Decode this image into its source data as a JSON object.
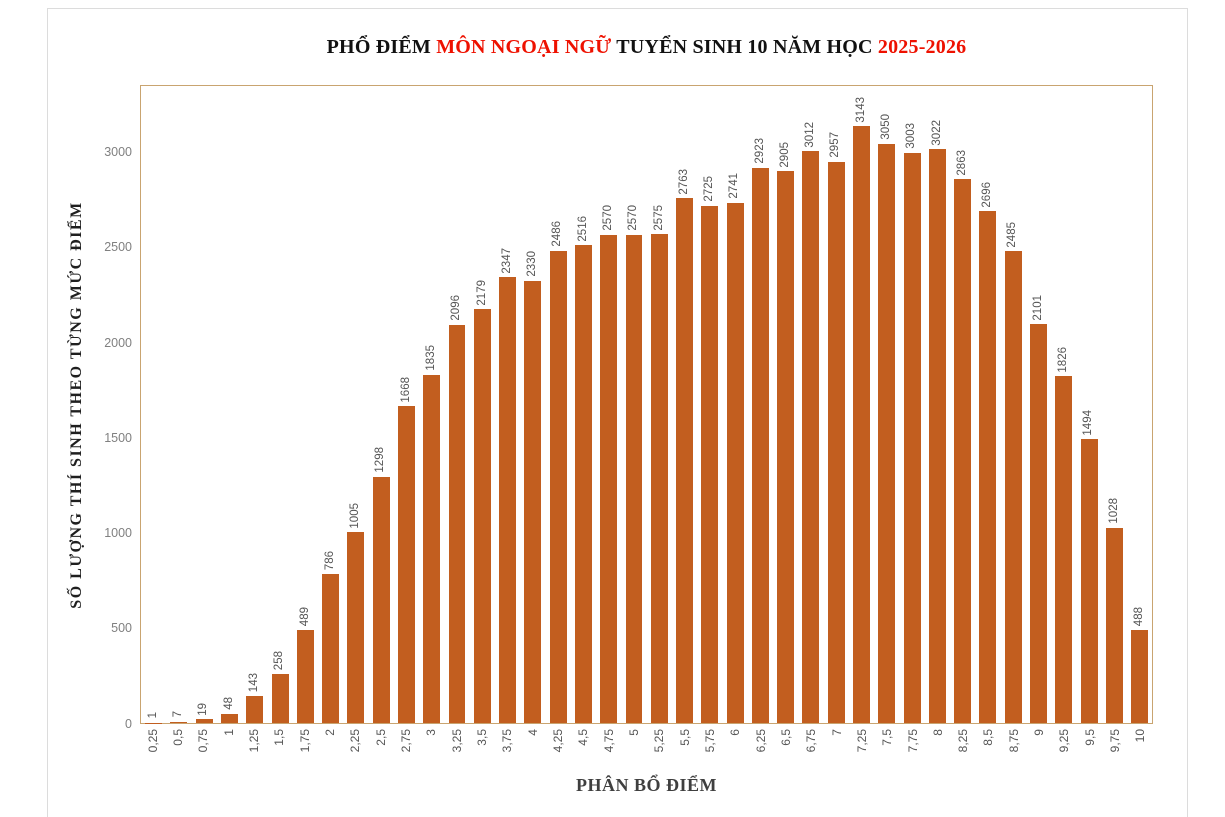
{
  "title": {
    "part1": "PHỔ ĐIỂM ",
    "part2_red": "MÔN NGOẠI NGỮ",
    "part3": " TUYỂN SINH 10 NĂM HỌC ",
    "part4_red": "2025-2026",
    "red_hex": "#ee1100"
  },
  "chart_data": {
    "type": "bar",
    "title": "PHỔ ĐIỂM MÔN NGOẠI NGỮ TUYỂN SINH 10 NĂM HỌC 2025-2026",
    "xlabel": "PHÂN BỔ ĐIỂM",
    "ylabel": "SỐ LƯỢNG THÍ SINH THEO TỪNG MỨC ĐIỂM",
    "categories": [
      "0,25",
      "0,5",
      "0,75",
      "1",
      "1,25",
      "1,5",
      "1,75",
      "2",
      "2,25",
      "2,5",
      "2,75",
      "3",
      "3,25",
      "3,5",
      "3,75",
      "4",
      "4,25",
      "4,5",
      "4,75",
      "5",
      "5,25",
      "5,5",
      "5,75",
      "6",
      "6,25",
      "6,5",
      "6,75",
      "7",
      "7,25",
      "7,5",
      "7,75",
      "8",
      "8,25",
      "8,5",
      "8,75",
      "9",
      "9,25",
      "9,5",
      "9,75",
      "10"
    ],
    "values": [
      1,
      7,
      19,
      48,
      143,
      258,
      489,
      786,
      1005,
      1298,
      1668,
      1835,
      2096,
      2179,
      2347,
      2330,
      2486,
      2516,
      2570,
      2570,
      2575,
      2763,
      2725,
      2741,
      2923,
      2905,
      3012,
      2957,
      3143,
      3050,
      3003,
      3022,
      2863,
      2696,
      2485,
      2101,
      1826,
      1494,
      1028,
      488
    ],
    "y_ticks": [
      0,
      500,
      1000,
      1500,
      2000,
      2500,
      3000
    ],
    "ylim": [
      0,
      3355
    ],
    "grid": false,
    "legend_position": "none",
    "data_labels": true,
    "bar_color": "#c25e1f",
    "plot_border_color": "#c9a470",
    "label_color": "#555555",
    "tick_color": "#808080"
  }
}
